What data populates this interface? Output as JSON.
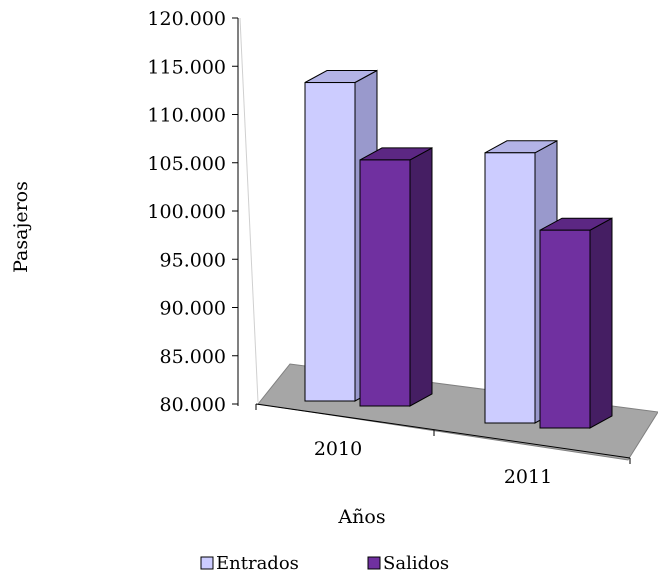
{
  "chart_data": {
    "type": "bar",
    "categories": [
      "2010",
      "2011"
    ],
    "series": [
      {
        "name": "Entrados",
        "values": [
          113000,
          108000
        ],
        "color": "#ccccff"
      },
      {
        "name": "Salidos",
        "values": [
          105500,
          100500
        ],
        "color": "#7030a0"
      }
    ],
    "xlabel": "Años",
    "ylabel": "Pasajeros",
    "ylim": [
      80000,
      120000
    ],
    "yticks": [
      "120.000",
      "115.000",
      "110.000",
      "105.000",
      "100.000",
      "95.000",
      "90.000",
      "85.000",
      "80.000"
    ],
    "legend_position": "bottom",
    "grid": false,
    "floor_color": "#a6a6a6"
  }
}
